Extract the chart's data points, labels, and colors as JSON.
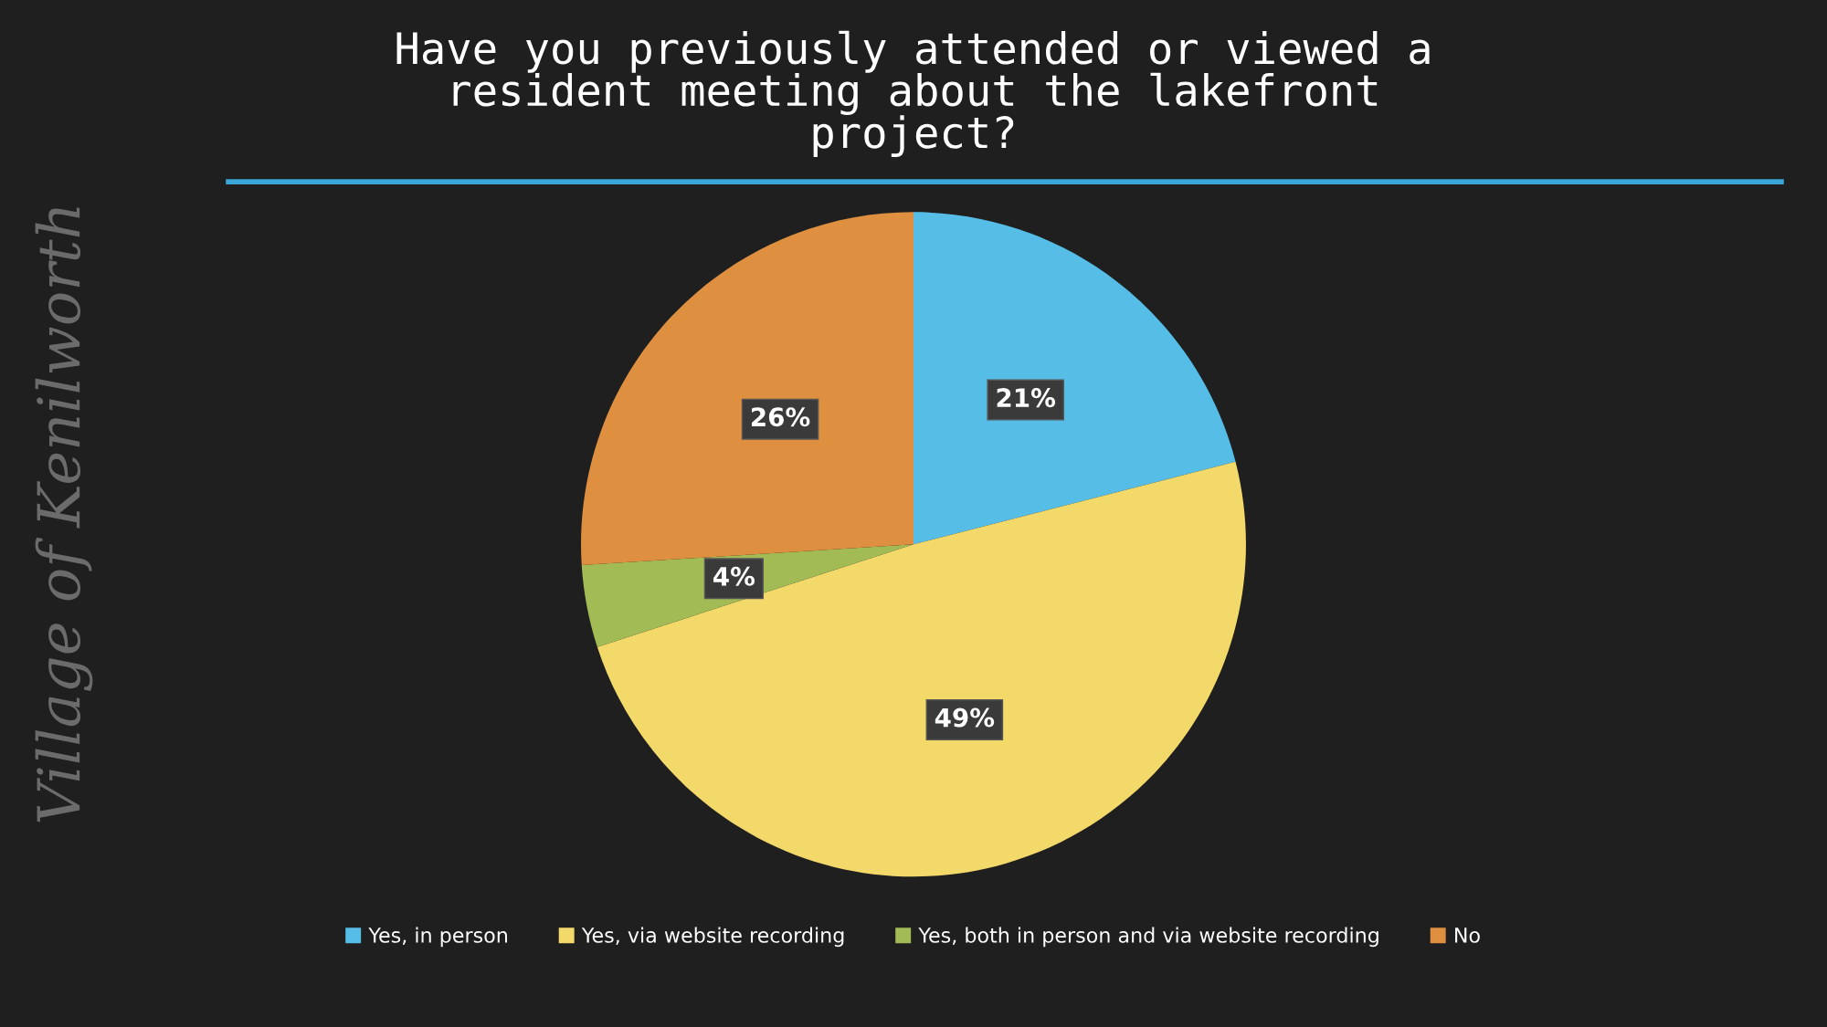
{
  "chart_data": {
    "type": "pie",
    "title": "Have you previously attended or viewed a\nresident meeting about the lakefront\nproject?",
    "categories": [
      "Yes, in person",
      "Yes, via website recording",
      "Yes, both in person and via website recording",
      "No"
    ],
    "values": [
      21,
      49,
      4,
      26
    ],
    "colors": [
      "#56bde6",
      "#f3d96a",
      "#a3bb55",
      "#de8f40"
    ],
    "value_labels": [
      "21%",
      "49%",
      "4%",
      "26%"
    ],
    "legend": "bottom",
    "annotations": [
      "Village of Kenilworth"
    ]
  }
}
